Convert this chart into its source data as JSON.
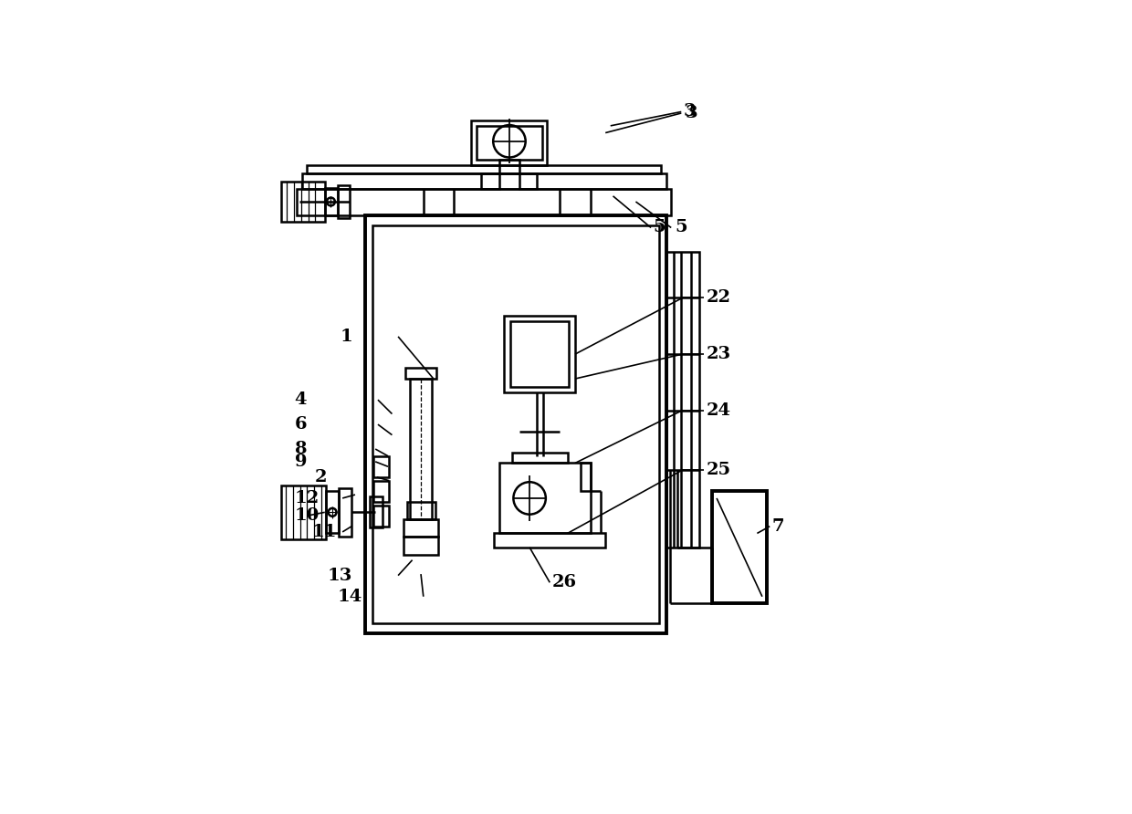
{
  "bg_color": "#ffffff",
  "lc": "#000000",
  "lw": 1.8,
  "tlw": 2.8,
  "fs": 14,
  "fig_w": 12.4,
  "fig_h": 8.92,
  "dpi": 100
}
